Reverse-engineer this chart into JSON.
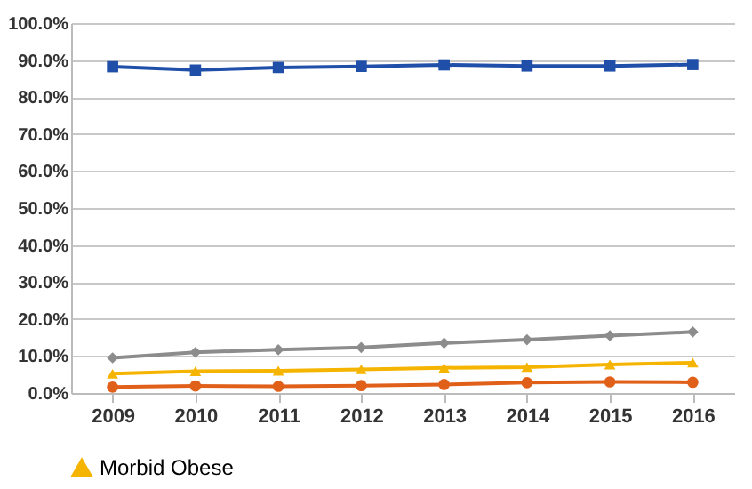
{
  "chart_data": {
    "type": "line",
    "categories": [
      "2009",
      "2010",
      "2011",
      "2012",
      "2013",
      "2014",
      "2015",
      "2016"
    ],
    "series": [
      {
        "color": "#1f4fa8",
        "marker": "square",
        "values": [
          88.2,
          87.3,
          88.0,
          88.3,
          88.7,
          88.4,
          88.4,
          88.8
        ]
      },
      {
        "color": "#8c8c8c",
        "marker": "diamond",
        "values": [
          9.5,
          11.0,
          11.7,
          12.3,
          13.5,
          14.4,
          15.5,
          16.5
        ]
      },
      {
        "name": "Morbid Obese",
        "color": "#f5b400",
        "marker": "triangle",
        "values": [
          5.2,
          5.9,
          6.0,
          6.4,
          6.8,
          7.0,
          7.7,
          8.2
        ]
      },
      {
        "color": "#e0601a",
        "marker": "circle",
        "values": [
          1.6,
          1.9,
          1.8,
          2.0,
          2.3,
          2.8,
          3.0,
          2.9
        ]
      }
    ],
    "ylim": [
      0,
      100
    ],
    "yticks": [
      {
        "value": 0,
        "label": "0.0%"
      },
      {
        "value": 10,
        "label": "10.0%"
      },
      {
        "value": 20,
        "label": "20.0%"
      },
      {
        "value": 30,
        "label": "30.0%"
      },
      {
        "value": 40,
        "label": "40.0%"
      },
      {
        "value": 50,
        "label": "50.0%"
      },
      {
        "value": 60,
        "label": "60.0%"
      },
      {
        "value": 70,
        "label": "70.0%"
      },
      {
        "value": 80,
        "label": "80.0%"
      },
      {
        "value": 90,
        "label": "90.0%"
      },
      {
        "value": 100,
        "label": "100.0%"
      }
    ],
    "grid": "y",
    "legend": "bottom"
  }
}
